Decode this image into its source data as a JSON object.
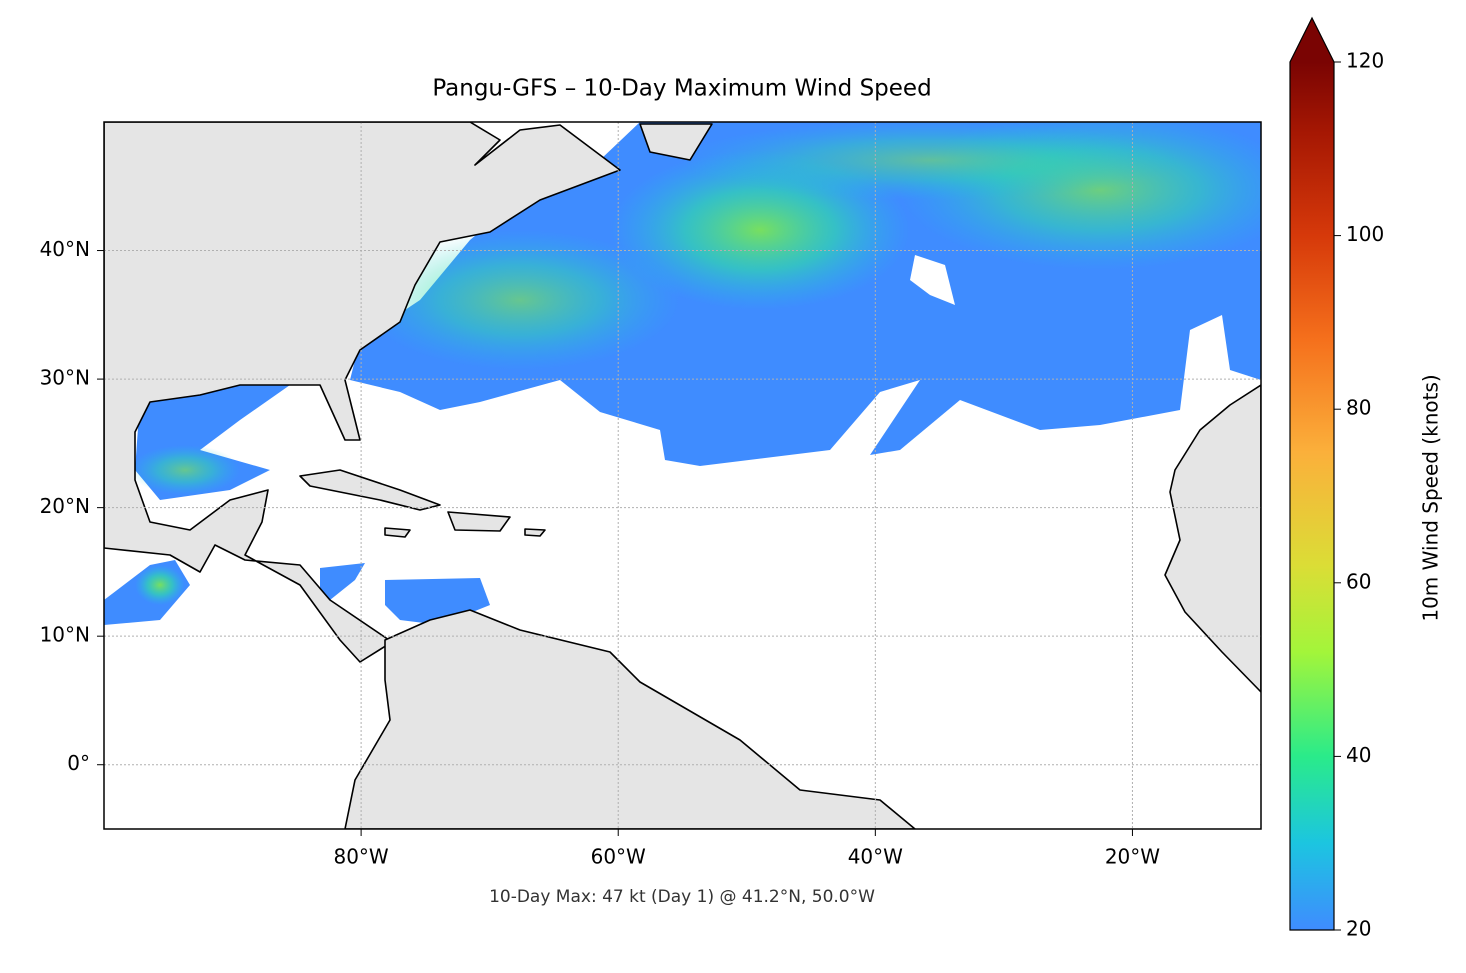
{
  "chart_data": {
    "type": "map",
    "title": "Pangu-GFS – 10-Day Maximum Wind Speed",
    "annotation": "10-Day Max: 47 kt (Day 1) @ 41.2°N, 50.0°W",
    "xlim": [
      -100,
      -10
    ],
    "ylim": [
      -5,
      50
    ],
    "xticks": [
      {
        "value": -80,
        "label": "80°W"
      },
      {
        "value": -60,
        "label": "60°W"
      },
      {
        "value": -40,
        "label": "40°W"
      },
      {
        "value": -20,
        "label": "20°W"
      }
    ],
    "yticks": [
      {
        "value": 0,
        "label": "0°"
      },
      {
        "value": 10,
        "label": "10°N"
      },
      {
        "value": 20,
        "label": "20°N"
      },
      {
        "value": 30,
        "label": "30°N"
      },
      {
        "value": 40,
        "label": "40°N"
      }
    ],
    "grid": true,
    "colorbar": {
      "label": "10m Wind Speed (knots)",
      "lim": [
        20,
        120
      ],
      "ticks": [
        20,
        40,
        60,
        80,
        100,
        120
      ],
      "extend": "max"
    }
  }
}
